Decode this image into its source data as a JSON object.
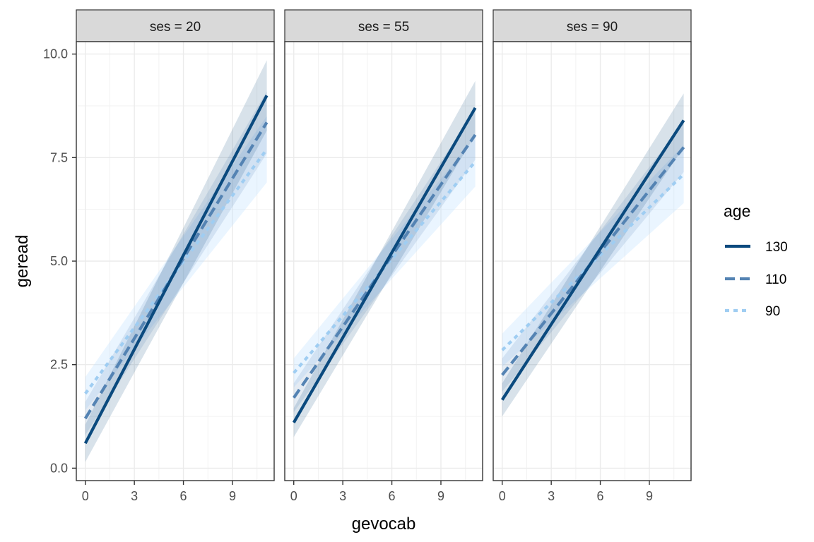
{
  "chart_data": {
    "type": "line",
    "xlabel": "gevocab",
    "ylabel": "geread",
    "xlim": [
      -0.55,
      11.55
    ],
    "ylim": [
      -0.3,
      10.3
    ],
    "x_ticks": [
      0,
      3,
      6,
      9
    ],
    "y_ticks": [
      0,
      2.5,
      5,
      7.5,
      10
    ],
    "y_tick_labels": [
      "0.0",
      "2.5",
      "5.0",
      "7.5",
      "10.0"
    ],
    "grid": true,
    "legend": {
      "title": "age",
      "position": "right"
    },
    "series_styles": [
      {
        "name": "130",
        "color": "#0b4a7e",
        "dash": ""
      },
      {
        "name": "110",
        "color": "#5483b3",
        "dash": "14,7"
      },
      {
        "name": "90",
        "color": "#9fcdf2",
        "dash": "6,6"
      }
    ],
    "band_fill": [
      {
        "name": "130",
        "color": "#0b4a7e",
        "opacity": 0.16
      },
      {
        "name": "110",
        "color": "#5483b3",
        "opacity": 0.16
      },
      {
        "name": "90",
        "color": "#bfe1ff",
        "opacity": 0.32
      }
    ],
    "x_range": [
      0,
      11.1
    ],
    "panels": [
      {
        "label": "ses = 20",
        "series": [
          {
            "name": "130",
            "y0": 0.6,
            "y1": 9.0,
            "lo0": 0.15,
            "hi0": 1.05,
            "lo1": 8.15,
            "hi1": 9.85
          },
          {
            "name": "110",
            "y0": 1.2,
            "y1": 8.35,
            "lo0": 0.8,
            "hi0": 1.6,
            "lo1": 7.6,
            "hi1": 9.1
          },
          {
            "name": "90",
            "y0": 1.8,
            "y1": 7.7,
            "lo0": 1.4,
            "hi0": 2.2,
            "lo1": 6.9,
            "hi1": 8.5
          }
        ]
      },
      {
        "label": "ses = 55",
        "series": [
          {
            "name": "130",
            "y0": 1.1,
            "y1": 8.7,
            "lo0": 0.75,
            "hi0": 1.45,
            "lo1": 8.05,
            "hi1": 9.35
          },
          {
            "name": "110",
            "y0": 1.7,
            "y1": 8.05,
            "lo0": 1.35,
            "hi0": 2.05,
            "lo1": 7.45,
            "hi1": 8.65
          },
          {
            "name": "90",
            "y0": 2.3,
            "y1": 7.4,
            "lo0": 1.95,
            "hi0": 2.65,
            "lo1": 6.8,
            "hi1": 8.0
          }
        ]
      },
      {
        "label": "ses = 90",
        "series": [
          {
            "name": "130",
            "y0": 1.65,
            "y1": 8.4,
            "lo0": 1.25,
            "hi0": 2.05,
            "lo1": 7.75,
            "hi1": 9.05
          },
          {
            "name": "110",
            "y0": 2.25,
            "y1": 7.75,
            "lo0": 1.85,
            "hi0": 2.65,
            "lo1": 7.15,
            "hi1": 8.35
          },
          {
            "name": "90",
            "y0": 2.85,
            "y1": 7.1,
            "lo0": 2.45,
            "hi0": 3.25,
            "lo1": 6.4,
            "hi1": 7.8
          }
        ]
      }
    ]
  }
}
